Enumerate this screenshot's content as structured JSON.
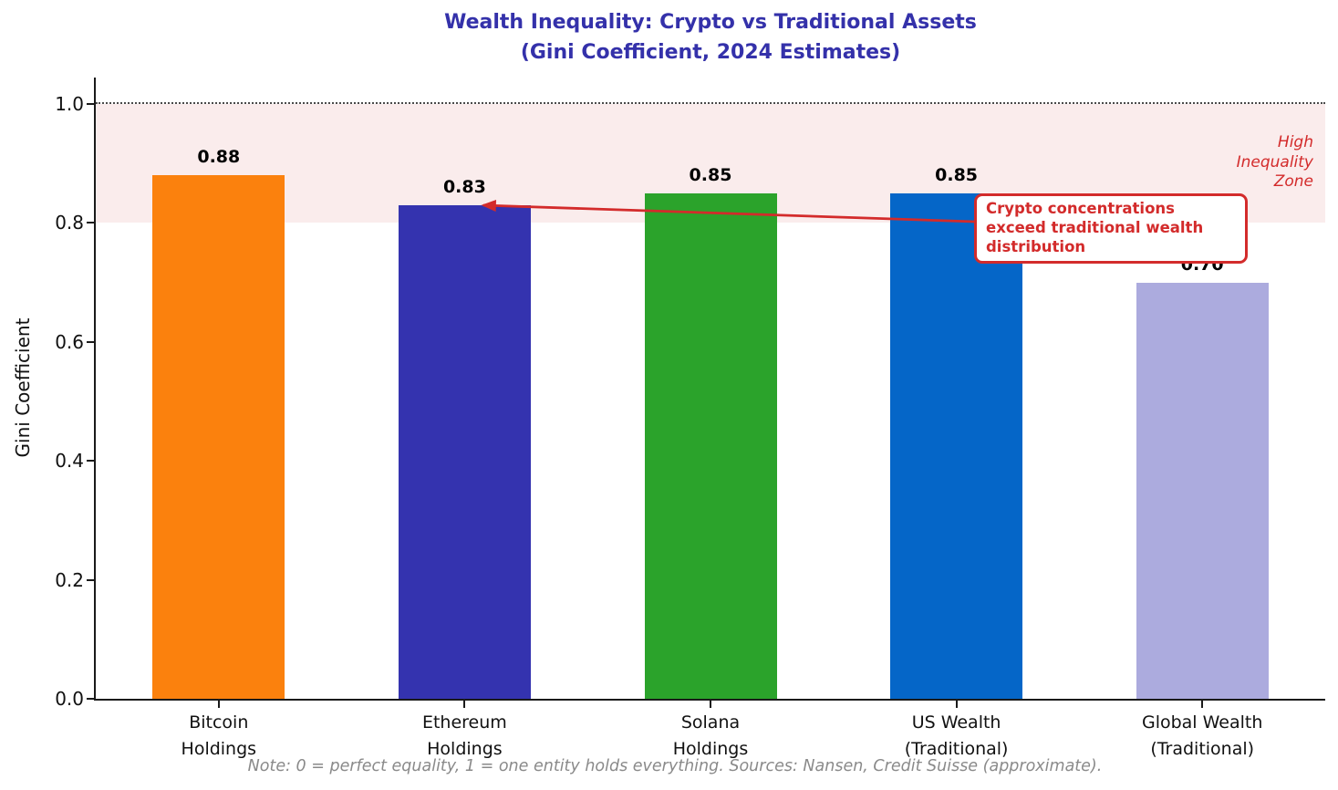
{
  "title": {
    "line1": "Wealth Inequality: Crypto vs Traditional Assets",
    "line2": "(Gini Coefficient, 2024 Estimates)",
    "color": "#3431AA"
  },
  "axes": {
    "y_label": "Gini Coefficient",
    "y_tick_labels": [
      "0.0",
      "0.2",
      "0.4",
      "0.6",
      "0.8",
      "1.0"
    ]
  },
  "chart_data": {
    "type": "bar",
    "title": "Wealth Inequality: Crypto vs Traditional Assets (Gini Coefficient, 2024 Estimates)",
    "ylabel": "Gini Coefficient",
    "xlabel": "",
    "ylim": [
      0,
      1.045
    ],
    "yticks": [
      0.0,
      0.2,
      0.4,
      0.6,
      0.8,
      1.0
    ],
    "grid": false,
    "categories": [
      [
        "Bitcoin",
        "Holdings"
      ],
      [
        "Ethereum",
        "Holdings"
      ],
      [
        "Solana",
        "Holdings"
      ],
      [
        "US Wealth",
        "(Traditional)"
      ],
      [
        "Global Wealth",
        "(Traditional)"
      ]
    ],
    "values": [
      0.88,
      0.83,
      0.85,
      0.85,
      0.7
    ],
    "value_labels": [
      "0.88",
      "0.83",
      "0.85",
      "0.85",
      "0.70"
    ],
    "bar_colors": [
      "#FB810D",
      "#3433AF",
      "#2BA32B",
      "#0566C8",
      "#ACABDE"
    ],
    "reference_line": {
      "value": 1.0,
      "style": "dotted",
      "color": "#4a4a4a"
    },
    "high_zone": {
      "from": 0.8,
      "to": 1.0,
      "fill": "#FAECEC"
    }
  },
  "zone_label": {
    "lines": [
      "High",
      "Inequality",
      "Zone"
    ],
    "color": "#D32B2B"
  },
  "annotation": {
    "text": "Crypto concentrations exceed traditional wealth distribution",
    "lines": [
      "Crypto concentrations",
      "exceed traditional wealth",
      "distribution"
    ],
    "color": "#D32B2B",
    "points_to": "Ethereum Holdings bar top (0.83)"
  },
  "footnote": {
    "text": "Note: 0 = perfect equality, 1 = one entity holds everything. Sources: Nansen, Credit Suisse (approximate)."
  }
}
